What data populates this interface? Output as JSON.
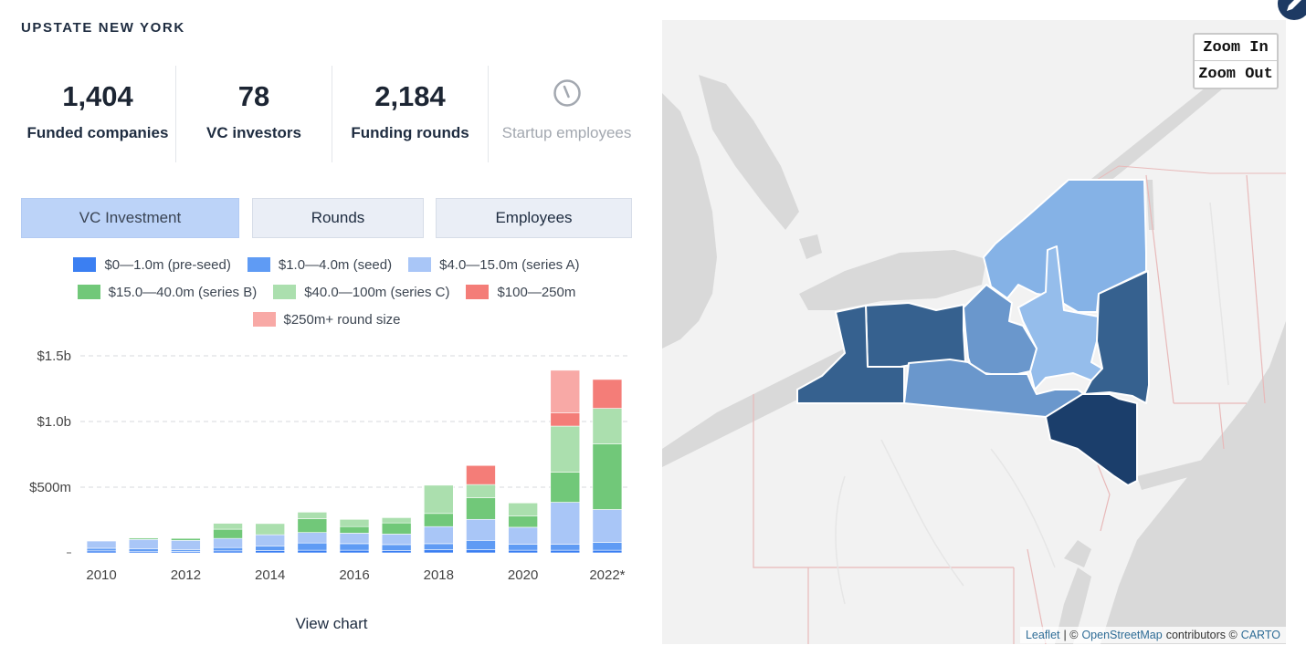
{
  "region_title": "UPSTATE NEW YORK",
  "stats": [
    {
      "value": "1,404",
      "label": "Funded companies"
    },
    {
      "value": "78",
      "label": "VC investors"
    },
    {
      "value": "2,184",
      "label": "Funding rounds"
    },
    {
      "value": "",
      "label": "Startup employees"
    }
  ],
  "tabs": [
    "VC Investment",
    "Rounds",
    "Employees"
  ],
  "active_tab": "VC Investment",
  "legend": [
    {
      "label": "$0—1.0m (pre-seed)",
      "color": "#3b7ff2"
    },
    {
      "label": "$1.0—4.0m (seed)",
      "color": "#5f9bf4"
    },
    {
      "label": "$4.0—15.0m (series A)",
      "color": "#a9c6f7"
    },
    {
      "label": "$15.0—40.0m (series B)",
      "color": "#71c879"
    },
    {
      "label": "$40.0—100m (series C)",
      "color": "#abdfae"
    },
    {
      "label": "$100—250m",
      "color": "#f47d78"
    },
    {
      "label": "$250m+ round size",
      "color": "#f8a9a6"
    }
  ],
  "view_chart_label": "View chart",
  "chart_data": {
    "type": "bar",
    "stacked": true,
    "categories": [
      "2010",
      "2011",
      "2012",
      "2013",
      "2014",
      "2015",
      "2016",
      "2017",
      "2018",
      "2019",
      "2020",
      "2021",
      "2022*"
    ],
    "x_tick_labels": [
      "2010",
      "2012",
      "2014",
      "2016",
      "2018",
      "2020",
      "2022*"
    ],
    "y_ticks": [
      "$1.5b",
      "$1.0b",
      "$500m"
    ],
    "y_tick_values": [
      1500,
      1000,
      500
    ],
    "ylim": [
      0,
      1500
    ],
    "unit": "$m",
    "grid": true,
    "series": [
      {
        "name": "$0—1.0m (pre-seed)",
        "color": "#3b7ff2",
        "values": [
          15,
          12,
          10,
          15,
          18,
          20,
          20,
          18,
          25,
          25,
          20,
          20,
          20
        ]
      },
      {
        "name": "$1.0—4.0m (seed)",
        "color": "#5f9bf4",
        "values": [
          20,
          20,
          15,
          25,
          35,
          55,
          50,
          45,
          45,
          70,
          45,
          45,
          60
        ]
      },
      {
        "name": "$4.0—15.0m (series A)",
        "color": "#a9c6f7",
        "values": [
          55,
          70,
          70,
          70,
          85,
          80,
          80,
          80,
          130,
          160,
          130,
          320,
          250
        ]
      },
      {
        "name": "$15.0—40.0m (series B)",
        "color": "#71c879",
        "values": [
          0,
          10,
          15,
          70,
          0,
          105,
          50,
          85,
          100,
          165,
          85,
          230,
          500
        ]
      },
      {
        "name": "$40.0—100m (series C)",
        "color": "#abdfae",
        "values": [
          0,
          0,
          0,
          45,
          85,
          50,
          55,
          40,
          215,
          100,
          100,
          350,
          270
        ]
      },
      {
        "name": "$100—250m",
        "color": "#f47d78",
        "values": [
          0,
          0,
          0,
          0,
          0,
          0,
          0,
          0,
          0,
          145,
          0,
          100,
          220
        ]
      },
      {
        "name": "$250m+ round size",
        "color": "#f8a9a6",
        "values": [
          0,
          0,
          0,
          0,
          0,
          0,
          0,
          0,
          0,
          0,
          0,
          325,
          0
        ]
      }
    ]
  },
  "map": {
    "zoom_in_label": "Zoom In",
    "zoom_out_label": "Zoom Out",
    "attribution": {
      "leaflet": "Leaflet",
      "sep": "| ©",
      "osm": "OpenStreetMap",
      "contributors": "contributors ©",
      "carto": "CARTO"
    },
    "region_colors": {
      "darkest": "#1b3e6b",
      "dark": "#36618f",
      "mid": "#6a97cc",
      "light": "#85b2e6",
      "lighter": "#95bdeb"
    }
  }
}
